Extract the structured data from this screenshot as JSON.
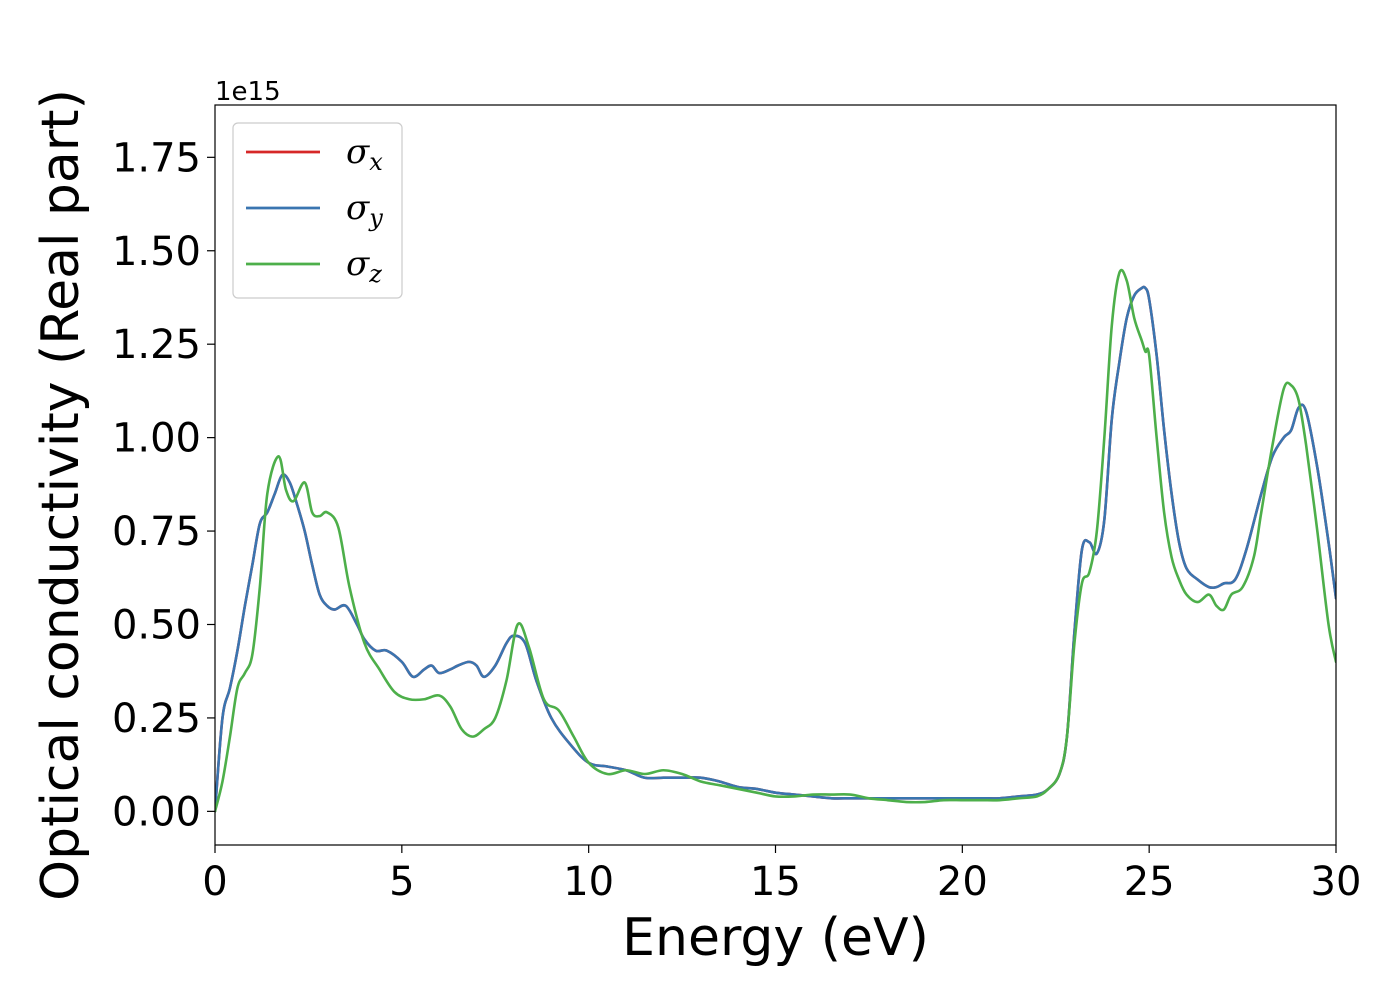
{
  "chart_data": {
    "type": "line",
    "xlabel": "Energy (eV)",
    "ylabel": "Optical conductivity (Real part)",
    "y_offset_label": "1e15",
    "xlim": [
      0,
      30
    ],
    "ylim": [
      -0.09,
      1.89
    ],
    "x_ticks": [
      0,
      5,
      10,
      15,
      20,
      25,
      30
    ],
    "x_tick_labels": [
      "0",
      "5",
      "10",
      "15",
      "20",
      "25",
      "30"
    ],
    "y_ticks": [
      0.0,
      0.25,
      0.5,
      0.75,
      1.0,
      1.25,
      1.5,
      1.75
    ],
    "y_tick_labels": [
      "0.00",
      "0.25",
      "0.50",
      "0.75",
      "1.00",
      "1.25",
      "1.50",
      "1.75"
    ],
    "grid": false,
    "legend_position": "top-left",
    "series": [
      {
        "name": "σx",
        "symbol": "σ",
        "subscript": "x",
        "color": "#d62728",
        "x": [
          0,
          0.2,
          0.4,
          0.6,
          0.8,
          1.0,
          1.2,
          1.4,
          1.6,
          1.8,
          2.0,
          2.2,
          2.4,
          2.6,
          2.8,
          3.0,
          3.2,
          3.5,
          3.8,
          4.0,
          4.3,
          4.6,
          5.0,
          5.3,
          5.6,
          5.8,
          6.0,
          6.3,
          6.5,
          6.8,
          7.0,
          7.2,
          7.5,
          7.8,
          8.0,
          8.3,
          8.6,
          9.0,
          9.5,
          10.0,
          10.5,
          11.0,
          11.5,
          12.0,
          12.5,
          13.0,
          13.5,
          14.0,
          14.5,
          15.0,
          15.5,
          16.0,
          16.5,
          17.0,
          17.5,
          18.0,
          18.5,
          19.0,
          19.5,
          20.0,
          20.5,
          21.0,
          21.5,
          22.0,
          22.3,
          22.6,
          22.8,
          23.0,
          23.2,
          23.4,
          23.6,
          23.8,
          24.0,
          24.2,
          24.4,
          24.6,
          24.8,
          24.9,
          25.0,
          25.2,
          25.4,
          25.6,
          25.8,
          26.0,
          26.3,
          26.6,
          26.8,
          27.0,
          27.3,
          27.6,
          28.0,
          28.3,
          28.6,
          28.8,
          29.0,
          29.2,
          29.5,
          29.8,
          30.0
        ],
        "y": [
          0.0,
          0.25,
          0.33,
          0.43,
          0.55,
          0.66,
          0.77,
          0.8,
          0.85,
          0.9,
          0.88,
          0.82,
          0.75,
          0.66,
          0.58,
          0.55,
          0.54,
          0.55,
          0.5,
          0.46,
          0.43,
          0.43,
          0.4,
          0.36,
          0.38,
          0.39,
          0.37,
          0.38,
          0.39,
          0.4,
          0.39,
          0.36,
          0.39,
          0.45,
          0.47,
          0.45,
          0.35,
          0.25,
          0.18,
          0.13,
          0.12,
          0.11,
          0.09,
          0.09,
          0.09,
          0.09,
          0.08,
          0.065,
          0.06,
          0.05,
          0.045,
          0.04,
          0.035,
          0.035,
          0.035,
          0.035,
          0.035,
          0.035,
          0.035,
          0.035,
          0.035,
          0.035,
          0.04,
          0.045,
          0.06,
          0.1,
          0.2,
          0.48,
          0.7,
          0.72,
          0.69,
          0.78,
          1.05,
          1.2,
          1.32,
          1.38,
          1.4,
          1.4,
          1.37,
          1.22,
          1.02,
          0.85,
          0.72,
          0.65,
          0.62,
          0.6,
          0.6,
          0.61,
          0.62,
          0.7,
          0.85,
          0.95,
          1.0,
          1.02,
          1.08,
          1.07,
          0.92,
          0.72,
          0.57
        ]
      },
      {
        "name": "σy",
        "symbol": "σ",
        "subscript": "y",
        "color": "#3a75b0",
        "x": [
          0,
          0.2,
          0.4,
          0.6,
          0.8,
          1.0,
          1.2,
          1.4,
          1.6,
          1.8,
          2.0,
          2.2,
          2.4,
          2.6,
          2.8,
          3.0,
          3.2,
          3.5,
          3.8,
          4.0,
          4.3,
          4.6,
          5.0,
          5.3,
          5.6,
          5.8,
          6.0,
          6.3,
          6.5,
          6.8,
          7.0,
          7.2,
          7.5,
          7.8,
          8.0,
          8.3,
          8.6,
          9.0,
          9.5,
          10.0,
          10.5,
          11.0,
          11.5,
          12.0,
          12.5,
          13.0,
          13.5,
          14.0,
          14.5,
          15.0,
          15.5,
          16.0,
          16.5,
          17.0,
          17.5,
          18.0,
          18.5,
          19.0,
          19.5,
          20.0,
          20.5,
          21.0,
          21.5,
          22.0,
          22.3,
          22.6,
          22.8,
          23.0,
          23.2,
          23.4,
          23.6,
          23.8,
          24.0,
          24.2,
          24.4,
          24.6,
          24.8,
          24.9,
          25.0,
          25.2,
          25.4,
          25.6,
          25.8,
          26.0,
          26.3,
          26.6,
          26.8,
          27.0,
          27.3,
          27.6,
          28.0,
          28.3,
          28.6,
          28.8,
          29.0,
          29.2,
          29.5,
          29.8,
          30.0
        ],
        "y": [
          0.0,
          0.25,
          0.33,
          0.43,
          0.55,
          0.66,
          0.77,
          0.8,
          0.85,
          0.9,
          0.88,
          0.82,
          0.75,
          0.66,
          0.58,
          0.55,
          0.54,
          0.55,
          0.5,
          0.46,
          0.43,
          0.43,
          0.4,
          0.36,
          0.38,
          0.39,
          0.37,
          0.38,
          0.39,
          0.4,
          0.39,
          0.36,
          0.39,
          0.45,
          0.47,
          0.45,
          0.35,
          0.25,
          0.18,
          0.13,
          0.12,
          0.11,
          0.09,
          0.09,
          0.09,
          0.09,
          0.08,
          0.065,
          0.06,
          0.05,
          0.045,
          0.04,
          0.035,
          0.035,
          0.035,
          0.035,
          0.035,
          0.035,
          0.035,
          0.035,
          0.035,
          0.035,
          0.04,
          0.045,
          0.06,
          0.1,
          0.2,
          0.48,
          0.7,
          0.72,
          0.69,
          0.78,
          1.05,
          1.2,
          1.32,
          1.38,
          1.4,
          1.4,
          1.37,
          1.22,
          1.02,
          0.85,
          0.72,
          0.65,
          0.62,
          0.6,
          0.6,
          0.61,
          0.62,
          0.7,
          0.85,
          0.95,
          1.0,
          1.02,
          1.08,
          1.07,
          0.92,
          0.72,
          0.57
        ]
      },
      {
        "name": "σz",
        "symbol": "σ",
        "subscript": "z",
        "color": "#4daf4a",
        "x": [
          0,
          0.2,
          0.4,
          0.6,
          0.8,
          1.0,
          1.2,
          1.4,
          1.7,
          1.9,
          2.1,
          2.4,
          2.6,
          2.8,
          3.0,
          3.3,
          3.6,
          4.0,
          4.4,
          4.8,
          5.2,
          5.6,
          6.0,
          6.3,
          6.6,
          6.9,
          7.2,
          7.5,
          7.8,
          8.1,
          8.4,
          8.8,
          9.2,
          9.6,
          10.0,
          10.5,
          11.0,
          11.5,
          12.0,
          12.5,
          13.0,
          13.5,
          14.0,
          14.5,
          15.0,
          15.5,
          16.0,
          16.5,
          17.0,
          17.5,
          18.0,
          18.5,
          19.0,
          19.5,
          20.0,
          20.5,
          21.0,
          21.5,
          22.0,
          22.3,
          22.6,
          22.8,
          23.0,
          23.2,
          23.4,
          23.6,
          23.8,
          24.0,
          24.2,
          24.4,
          24.6,
          24.8,
          24.9,
          25.0,
          25.2,
          25.4,
          25.6,
          25.8,
          26.0,
          26.3,
          26.6,
          26.8,
          27.0,
          27.2,
          27.5,
          27.8,
          28.0,
          28.3,
          28.6,
          28.8,
          29.0,
          29.2,
          29.5,
          29.8,
          30.0
        ],
        "y": [
          0.0,
          0.08,
          0.2,
          0.33,
          0.37,
          0.42,
          0.6,
          0.85,
          0.95,
          0.86,
          0.83,
          0.88,
          0.8,
          0.79,
          0.8,
          0.76,
          0.6,
          0.45,
          0.38,
          0.32,
          0.3,
          0.3,
          0.31,
          0.28,
          0.22,
          0.2,
          0.22,
          0.25,
          0.35,
          0.5,
          0.44,
          0.3,
          0.27,
          0.2,
          0.13,
          0.1,
          0.11,
          0.1,
          0.11,
          0.1,
          0.08,
          0.07,
          0.06,
          0.05,
          0.04,
          0.04,
          0.045,
          0.045,
          0.045,
          0.035,
          0.03,
          0.025,
          0.025,
          0.03,
          0.03,
          0.03,
          0.03,
          0.035,
          0.04,
          0.06,
          0.1,
          0.2,
          0.45,
          0.61,
          0.64,
          0.75,
          1.0,
          1.3,
          1.44,
          1.42,
          1.32,
          1.26,
          1.23,
          1.22,
          1.0,
          0.8,
          0.68,
          0.62,
          0.58,
          0.56,
          0.58,
          0.55,
          0.54,
          0.58,
          0.6,
          0.68,
          0.8,
          0.98,
          1.13,
          1.14,
          1.1,
          0.98,
          0.75,
          0.5,
          0.4
        ]
      }
    ]
  }
}
